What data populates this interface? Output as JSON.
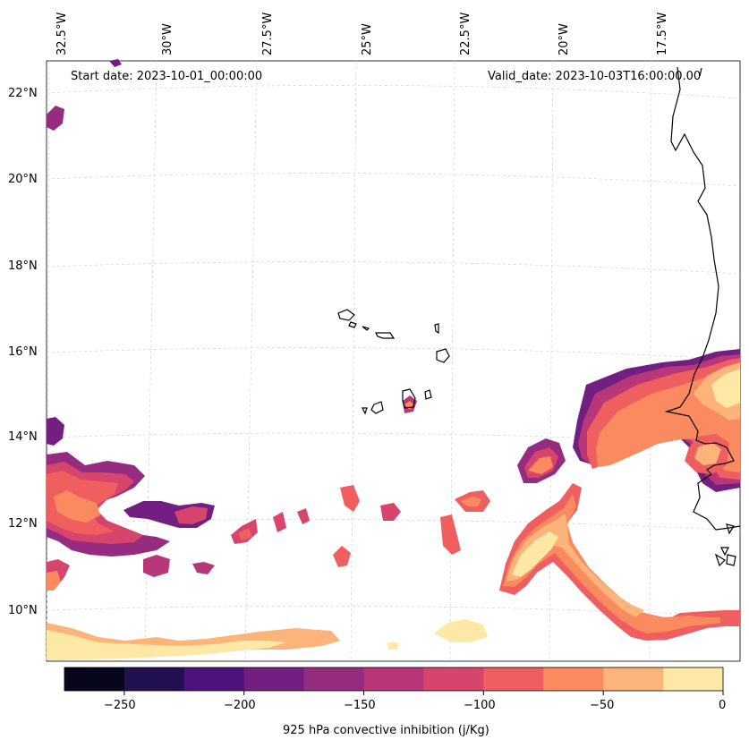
{
  "map": {
    "start_date": "Start date: 2023-10-01_00:00:00",
    "valid_date": "Valid_date: 2023-10-03T16:00:00.00",
    "lon_labels": [
      "32.5°W",
      "30°W",
      "27.5°W",
      "25°W",
      "22.5°W",
      "20°W",
      "17.5°W"
    ],
    "lat_labels": [
      "22°N",
      "20°N",
      "18°N",
      "16°N",
      "14°N",
      "12°N",
      "10°N"
    ]
  },
  "colorbar": {
    "label": "925 hPa convective inhibition (j/Kg)",
    "ticks": [
      "−250",
      "−200",
      "−150",
      "−100",
      "−50",
      "0"
    ],
    "colors": [
      "#07061c",
      "#221150",
      "#4f127b",
      "#731f81",
      "#952c80",
      "#b73779",
      "#d8456c",
      "#ef5f5f",
      "#fa8a5f",
      "#fdb47b",
      "#fde8a5"
    ]
  }
}
